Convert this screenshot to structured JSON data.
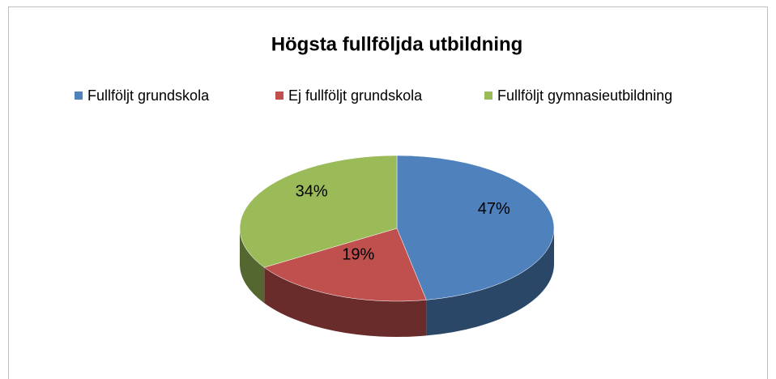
{
  "chart_data": {
    "type": "pie3d",
    "title": "Högsta fullföljda utbildning",
    "categories": [
      "Fullföljt grundskola",
      "Ej fullföljt grundskola",
      "Fullföljt gymnasieutbildning"
    ],
    "values": [
      47,
      19,
      34
    ],
    "value_labels": [
      "47%",
      "19%",
      "34%"
    ],
    "colors": [
      "#4f81bd",
      "#c0504d",
      "#9bbb59"
    ],
    "legend": "top"
  }
}
